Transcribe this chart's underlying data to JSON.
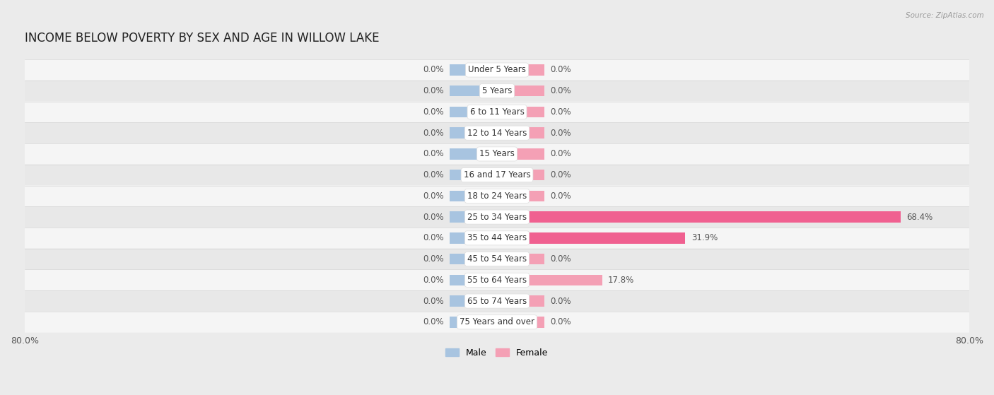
{
  "title": "INCOME BELOW POVERTY BY SEX AND AGE IN WILLOW LAKE",
  "source": "Source: ZipAtlas.com",
  "categories": [
    "Under 5 Years",
    "5 Years",
    "6 to 11 Years",
    "12 to 14 Years",
    "15 Years",
    "16 and 17 Years",
    "18 to 24 Years",
    "25 to 34 Years",
    "35 to 44 Years",
    "45 to 54 Years",
    "55 to 64 Years",
    "65 to 74 Years",
    "75 Years and over"
  ],
  "male_values": [
    0.0,
    0.0,
    0.0,
    0.0,
    0.0,
    0.0,
    0.0,
    0.0,
    0.0,
    0.0,
    0.0,
    0.0,
    0.0
  ],
  "female_values": [
    0.0,
    0.0,
    0.0,
    0.0,
    0.0,
    0.0,
    0.0,
    68.4,
    31.9,
    0.0,
    17.8,
    0.0,
    0.0
  ],
  "male_color": "#a8c4e0",
  "female_color": "#f4a0b5",
  "female_color_bright": "#f06090",
  "male_label": "Male",
  "female_label": "Female",
  "xlim": 80.0,
  "stub_size": 8.0,
  "bar_height": 0.52,
  "bg_color": "#ebebeb",
  "row_bg_odd": "#f5f5f5",
  "row_bg_even": "#e8e8e8",
  "title_fontsize": 12,
  "label_fontsize": 8.5,
  "tick_fontsize": 9,
  "category_fontsize": 8.5,
  "value_label_color": "#555555"
}
